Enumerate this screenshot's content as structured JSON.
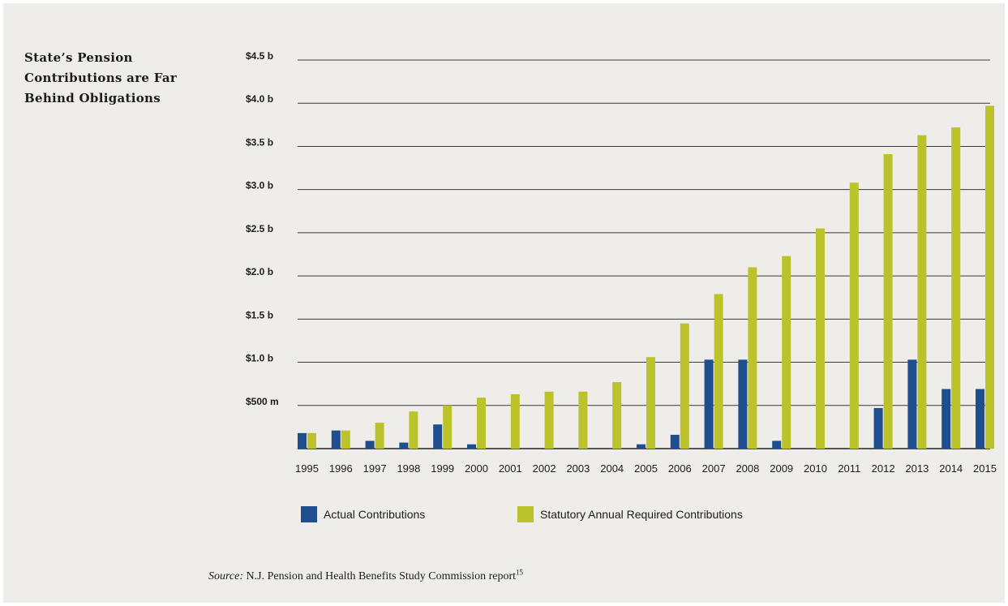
{
  "title_lines": [
    "State’s Pension",
    "Contributions are Far",
    "Behind Obligations"
  ],
  "source": {
    "label": "Source:",
    "text": "N.J. Pension and Health Benefits Study Commission report",
    "footnote": "15"
  },
  "colors": {
    "actual": "#1f4e8f",
    "required": "#bcc32a",
    "grid": "#3a3a3a",
    "background": "#efedea"
  },
  "chart_data": {
    "type": "bar",
    "categories": [
      "1995",
      "1996",
      "1997",
      "1998",
      "1999",
      "2000",
      "2001",
      "2002",
      "2003",
      "2004",
      "2005",
      "2006",
      "2007",
      "2008",
      "2009",
      "2010",
      "2011",
      "2012",
      "2013",
      "2014",
      "2015"
    ],
    "series": [
      {
        "name": "Actual Contributions",
        "values": [
          0.18,
          0.21,
          0.09,
          0.07,
          0.28,
          0.05,
          0,
          0,
          0,
          0,
          0.05,
          0.16,
          1.03,
          1.03,
          0.09,
          0,
          0,
          0.47,
          1.03,
          0.69,
          0.69
        ]
      },
      {
        "name": "Statutory Annual Required Contributions",
        "values": [
          0.18,
          0.21,
          0.3,
          0.43,
          0.5,
          0.59,
          0.63,
          0.66,
          0.66,
          0.77,
          1.06,
          1.45,
          1.79,
          2.1,
          2.23,
          2.55,
          3.08,
          3.41,
          3.63,
          3.72,
          3.97
        ]
      }
    ],
    "y_ticks": [
      {
        "value": 0.5,
        "label": "$500 m"
      },
      {
        "value": 1.0,
        "label": "$1.0 b"
      },
      {
        "value": 1.5,
        "label": "$1.5 b"
      },
      {
        "value": 2.0,
        "label": "$2.0 b"
      },
      {
        "value": 2.5,
        "label": "$2.5 b"
      },
      {
        "value": 3.0,
        "label": "$3.0 b"
      },
      {
        "value": 3.5,
        "label": "$3.5 b"
      },
      {
        "value": 4.0,
        "label": "$4.0 b"
      },
      {
        "value": 4.5,
        "label": "$4.5 b"
      }
    ],
    "ylim": [
      0,
      4.5
    ],
    "grid": true,
    "legend": "bottom"
  }
}
